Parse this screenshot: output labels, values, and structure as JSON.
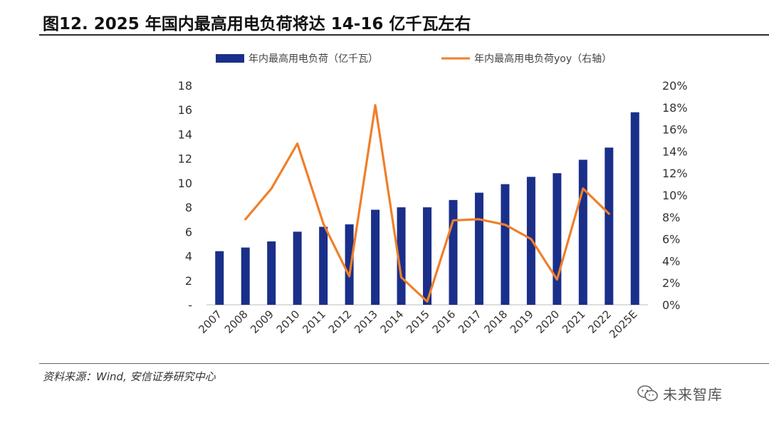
{
  "figure": {
    "title": "图12. 2025 年国内最高用电负荷将达 14-16 亿千瓦左右",
    "source": "资料来源：Wind, 安信证券研究中心",
    "watermark": "未来智库",
    "watermark_icon": "wechat-icon"
  },
  "chart_data": {
    "type": "bar",
    "categories": [
      "2007",
      "2008",
      "2009",
      "2010",
      "2011",
      "2012",
      "2013",
      "2014",
      "2015",
      "2016",
      "2017",
      "2018",
      "2019",
      "2020",
      "2021",
      "2022",
      "2025E"
    ],
    "series": [
      {
        "name": "年内最高用电负荷（亿千瓦）",
        "type": "bar",
        "axis": "left",
        "color": "#1a2f8a",
        "values": [
          4.4,
          4.7,
          5.2,
          6.0,
          6.4,
          6.6,
          7.8,
          8.0,
          8.0,
          8.6,
          9.2,
          9.9,
          10.5,
          10.8,
          11.9,
          12.9,
          15.8
        ]
      },
      {
        "name": "年内最高用电负荷yoy（右轴）",
        "type": "line",
        "axis": "right",
        "color": "#f07f2a",
        "values": [
          null,
          7.8,
          10.6,
          14.7,
          7.4,
          2.6,
          18.2,
          2.5,
          0.3,
          7.7,
          7.8,
          7.3,
          6.0,
          2.3,
          10.6,
          8.3,
          null
        ]
      }
    ],
    "y_left": {
      "min": 0,
      "max": 18,
      "step": 2,
      "zero_label": "-"
    },
    "y_right": {
      "min": 0,
      "max": 20,
      "step": 2,
      "suffix": "%"
    },
    "legend_position": "top",
    "grid": false
  }
}
